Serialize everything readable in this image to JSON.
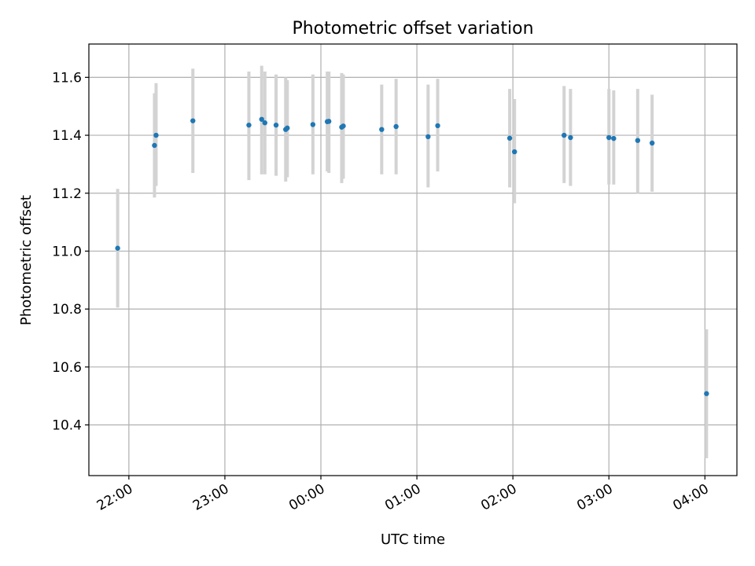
{
  "chart_data": {
    "type": "scatter",
    "title": "Photometric offset variation",
    "xlabel": "UTC time",
    "ylabel": "Photometric offset",
    "x_is_time": true,
    "x_ticks": [
      "22:00",
      "23:00",
      "00:00",
      "01:00",
      "02:00",
      "03:00",
      "04:00"
    ],
    "y_ticks": [
      "10.4",
      "10.6",
      "10.8",
      "11.0",
      "11.2",
      "11.4",
      "11.6"
    ],
    "xlim": [
      "21:35",
      "04:20"
    ],
    "ylim": [
      10.225,
      11.715
    ],
    "grid": true,
    "marker_color": "#1f77b4",
    "errorbar_color": "#d3d3d3",
    "series": [
      {
        "points": [
          {
            "x": "21:53",
            "y": 11.01,
            "ylo": 10.805,
            "yhi": 11.215
          },
          {
            "x": "22:16",
            "y": 11.365,
            "ylo": 11.185,
            "yhi": 11.545
          },
          {
            "x": "22:17",
            "y": 11.4,
            "ylo": 11.225,
            "yhi": 11.58
          },
          {
            "x": "22:40",
            "y": 11.45,
            "ylo": 11.27,
            "yhi": 11.63
          },
          {
            "x": "23:15",
            "y": 11.435,
            "ylo": 11.245,
            "yhi": 11.62
          },
          {
            "x": "23:23",
            "y": 11.455,
            "ylo": 11.265,
            "yhi": 11.64
          },
          {
            "x": "23:25",
            "y": 11.443,
            "ylo": 11.265,
            "yhi": 11.62
          },
          {
            "x": "23:32",
            "y": 11.435,
            "ylo": 11.26,
            "yhi": 11.61
          },
          {
            "x": "23:38",
            "y": 11.42,
            "ylo": 11.24,
            "yhi": 11.6
          },
          {
            "x": "23:39",
            "y": 11.425,
            "ylo": 11.255,
            "yhi": 11.59
          },
          {
            "x": "23:55",
            "y": 11.437,
            "ylo": 11.265,
            "yhi": 11.61
          },
          {
            "x": "00:04",
            "y": 11.447,
            "ylo": 11.275,
            "yhi": 11.62
          },
          {
            "x": "00:05",
            "y": 11.448,
            "ylo": 11.27,
            "yhi": 11.62
          },
          {
            "x": "00:13",
            "y": 11.428,
            "ylo": 11.235,
            "yhi": 11.615
          },
          {
            "x": "00:14",
            "y": 11.432,
            "ylo": 11.25,
            "yhi": 11.61
          },
          {
            "x": "00:38",
            "y": 11.42,
            "ylo": 11.265,
            "yhi": 11.575
          },
          {
            "x": "00:47",
            "y": 11.43,
            "ylo": 11.265,
            "yhi": 11.595
          },
          {
            "x": "01:07",
            "y": 11.395,
            "ylo": 11.22,
            "yhi": 11.575
          },
          {
            "x": "01:13",
            "y": 11.433,
            "ylo": 11.275,
            "yhi": 11.595
          },
          {
            "x": "01:58",
            "y": 11.39,
            "ylo": 11.22,
            "yhi": 11.56
          },
          {
            "x": "02:01",
            "y": 11.343,
            "ylo": 11.165,
            "yhi": 11.525
          },
          {
            "x": "02:32",
            "y": 11.4,
            "ylo": 11.235,
            "yhi": 11.57
          },
          {
            "x": "02:36",
            "y": 11.392,
            "ylo": 11.225,
            "yhi": 11.56
          },
          {
            "x": "03:00",
            "y": 11.392,
            "ylo": 11.23,
            "yhi": 11.56
          },
          {
            "x": "03:03",
            "y": 11.389,
            "ylo": 11.23,
            "yhi": 11.555
          },
          {
            "x": "03:18",
            "y": 11.382,
            "ylo": 11.2,
            "yhi": 11.56
          },
          {
            "x": "03:27",
            "y": 11.373,
            "ylo": 11.205,
            "yhi": 11.54
          },
          {
            "x": "04:01",
            "y": 10.508,
            "ylo": 10.285,
            "yhi": 10.73
          }
        ]
      }
    ]
  }
}
